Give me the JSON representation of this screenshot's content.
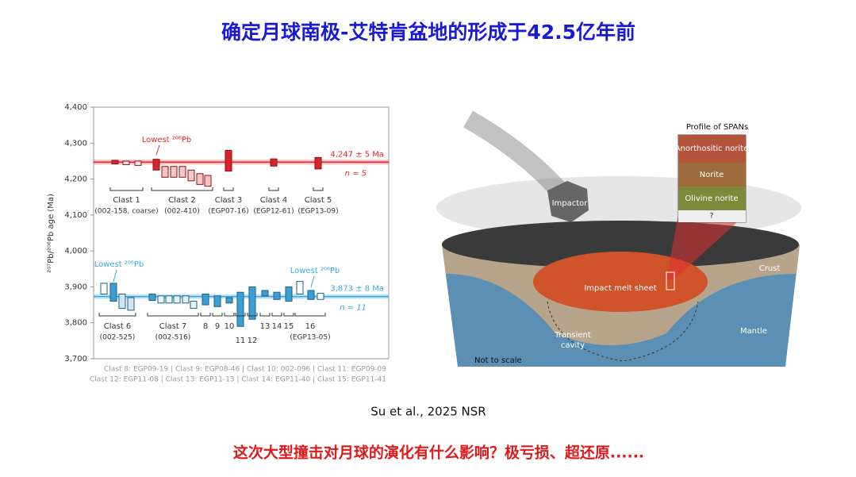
{
  "title": "确定月球南极-艾特肯盆地的形成于42.5亿年前",
  "chart_data": {
    "type": "range-box",
    "y_label": "²⁰⁷Pb/²⁰⁶Pb age (Ma)",
    "ylim": [
      3700,
      4400
    ],
    "yticks": [
      {
        "value": 3700,
        "label": "3,700"
      },
      {
        "value": 3800,
        "label": "3,800"
      },
      {
        "value": 3900,
        "label": "3,900"
      },
      {
        "value": 4000,
        "label": "4,000"
      },
      {
        "value": 4100,
        "label": "4,100"
      },
      {
        "value": 4200,
        "label": "4,200"
      },
      {
        "value": 4300,
        "label": "4,300"
      },
      {
        "value": 4400,
        "label": "4,400"
      }
    ],
    "rows": [
      {
        "line": 4247,
        "line_label": "4,247 ± 5 Ma",
        "n_label": "n = 5",
        "color": "#e0262b",
        "annotations": [
          "Lowest ²⁰⁶Pb"
        ],
        "clasts": [
          {
            "label": "Clast 1",
            "sample": "(002-158, coarse)",
            "boxes": [
              [
                4242,
                4252
              ],
              [
                4240,
                4250
              ],
              [
                4238,
                4250
              ]
            ],
            "fills": [
              "#d9232b",
              "#fbe3e3",
              "#fbe3e3"
            ]
          },
          {
            "label": "Clast 2",
            "sample": "(002-410)",
            "boxes": [
              [
                4225,
                4255
              ],
              [
                4205,
                4235
              ],
              [
                4205,
                4235
              ],
              [
                4205,
                4235
              ],
              [
                4195,
                4225
              ],
              [
                4185,
                4215
              ],
              [
                4180,
                4210
              ]
            ],
            "fills": [
              "#d9232b",
              "#f5c6c6",
              "#f5c6c6",
              "#f5c6c6",
              "#f5c6c6",
              "#f5c6c6",
              "#f5c6c6"
            ]
          },
          {
            "label": "Clast 3",
            "sample": "(EGP07-16)",
            "boxes": [
              [
                4222,
                4280
              ]
            ],
            "fills": [
              "#d9232b"
            ]
          },
          {
            "label": "Clast 4",
            "sample": "(EGP12-61)",
            "boxes": [
              [
                4236,
                4256
              ]
            ],
            "fills": [
              "#d9232b"
            ]
          },
          {
            "label": "Clast 5",
            "sample": "(EGP13-09)",
            "boxes": [
              [
                4228,
                4260
              ]
            ],
            "fills": [
              "#d9232b"
            ]
          }
        ]
      },
      {
        "line": 3873,
        "line_label": "3,873 ± 8 Ma",
        "n_label": "n = 11",
        "color": "#3aa7dc",
        "annotations": [
          "Lowest ²⁰⁶Pb",
          "Lowest ²⁰⁶Pb"
        ],
        "clasts": [
          {
            "label": "Clast 6",
            "sample": "(002-525)",
            "boxes": [
              [
                3880,
                3910
              ],
              [
                3860,
                3910
              ],
              [
                3840,
                3880
              ],
              [
                3835,
                3870
              ]
            ],
            "fills": [
              "#ffffff",
              "#3aa0d2",
              "#cfe7f4",
              "#cfe7f4"
            ]
          },
          {
            "label": "Clast 7",
            "sample": "(002-516)",
            "boxes": [
              [
                3862,
                3880
              ],
              [
                3855,
                3875
              ],
              [
                3855,
                3875
              ],
              [
                3855,
                3875
              ],
              [
                3855,
                3875
              ],
              [
                3840,
                3860
              ]
            ],
            "fills": [
              "#3aa0d2",
              "#e6f2f9",
              "#e6f2f9",
              "#e6f2f9",
              "#e6f2f9",
              "#e6f2f9"
            ]
          },
          {
            "label": "8",
            "boxes": [
              [
                3850,
                3880
              ]
            ],
            "fills": [
              "#3aa0d2"
            ]
          },
          {
            "label": "9",
            "boxes": [
              [
                3845,
                3875
              ]
            ],
            "fills": [
              "#3aa0d2"
            ]
          },
          {
            "label": "10",
            "boxes": [
              [
                3855,
                3870
              ]
            ],
            "fills": [
              "#3aa0d2"
            ]
          },
          {
            "label": "11",
            "boxes": [
              [
                3790,
                3885
              ]
            ],
            "fills": [
              "#3aa0d2"
            ]
          },
          {
            "label": "12",
            "boxes": [
              [
                3810,
                3900
              ]
            ],
            "fills": [
              "#3aa0d2"
            ]
          },
          {
            "label": "13",
            "boxes": [
              [
                3875,
                3890
              ]
            ],
            "fills": [
              "#3aa0d2"
            ]
          },
          {
            "label": "14",
            "boxes": [
              [
                3865,
                3885
              ]
            ],
            "fills": [
              "#3aa0d2"
            ]
          },
          {
            "label": "15",
            "boxes": [
              [
                3860,
                3900
              ]
            ],
            "fills": [
              "#3aa0d2"
            ]
          },
          {
            "label": "16",
            "sample": "(EGP13-05)",
            "boxes": [
              [
                3880,
                3915
              ],
              [
                3865,
                3890
              ],
              [
                3865,
                3882
              ]
            ],
            "fills": [
              "#ffffff",
              "#3aa0d2",
              "#ffffff"
            ]
          }
        ]
      }
    ],
    "footnotes": [
      "Clast 8: EGP09-19 | Clast 9: EGP08-46 | Clast 10: 002-096 | Clast 11: EGP09-09",
      "Clast 12: EGP11-08 | Clast 13: EGP11-13 | Clast 14: EGP11-40 | Clast 15: EGP11-41"
    ]
  },
  "figure": {
    "profile_title": "Profile of SPANs",
    "layers": [
      "Anorthositic norite",
      "Norite",
      "Olivine norite",
      "?"
    ],
    "impactor": "Impactor",
    "crust": "Crust",
    "melt": "Impact melt sheet",
    "cavity": [
      "Transient",
      "cavity"
    ],
    "mantle": "Mantle",
    "scale": "Not to scale"
  },
  "citation": "Su et al., 2025 NSR",
  "question": "这次大型撞击对月球的演化有什么影响？极亏损、超还原......"
}
